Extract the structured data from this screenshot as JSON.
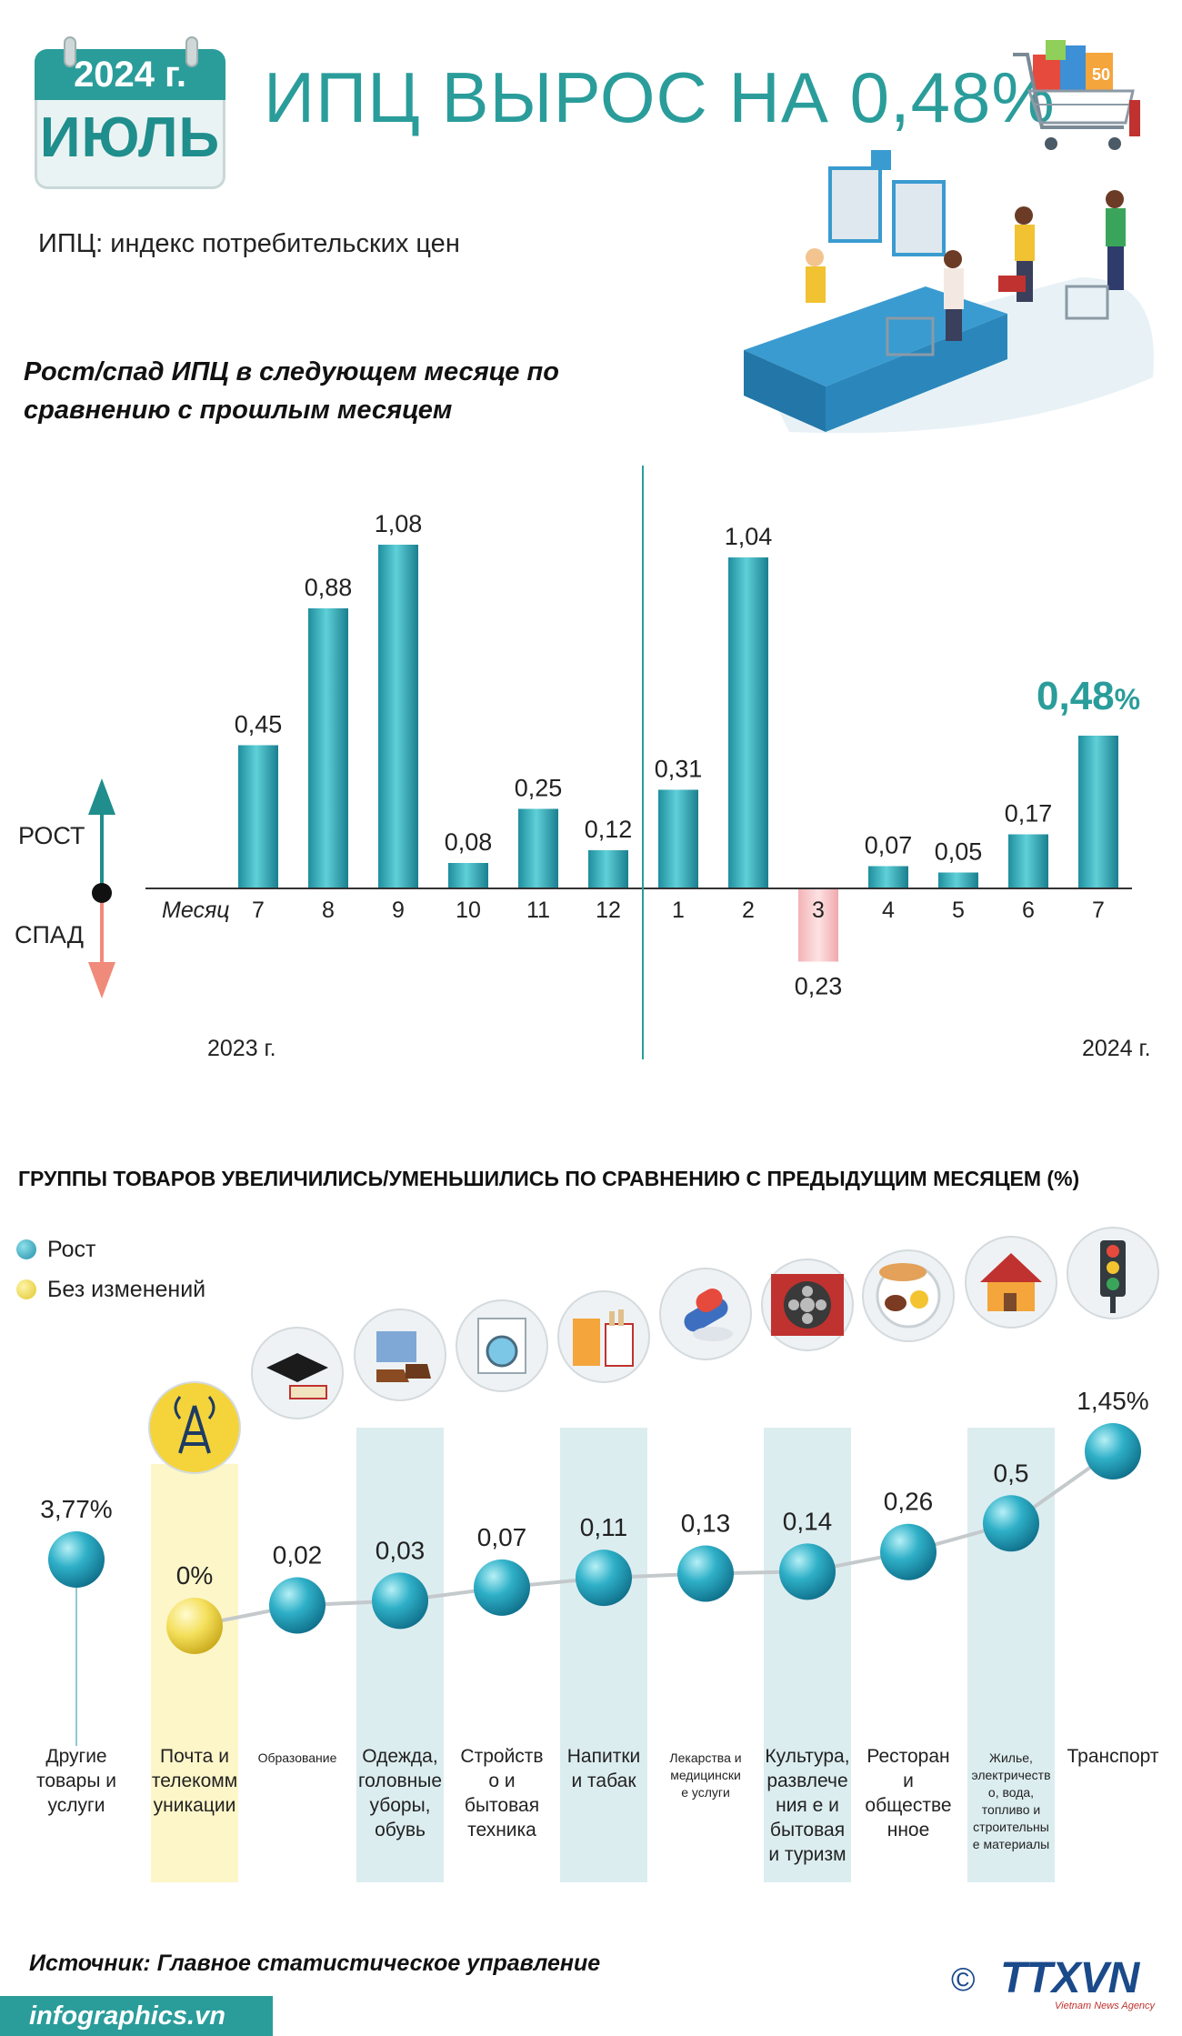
{
  "header": {
    "year_badge": "2024 г.",
    "month_badge": "ИЮЛЬ",
    "title": "ИПЦ ВЫРОС НА 0,48%",
    "subtitle": "ИПЦ: индекс потребительских цен"
  },
  "colors": {
    "accent": "#2a9d9b",
    "bar_teal": "#2aa7b5",
    "bar_negative": "#f6c6c8",
    "arrow_up": "#1f8e8c",
    "arrow_down": "#f08a7a",
    "highlight_yellow": "#fdf6c8",
    "highlight_blue": "#dcedf0"
  },
  "chart1": {
    "title_line1": "Рост/спад ИПЦ в следующем месяце по",
    "title_line2": "сравнению с прошлым месяцем",
    "rise_label": "РОСТ",
    "fall_label": "СПАД",
    "month_axis_label": "Месяц",
    "year_left": "2023 г.",
    "year_right": "2024 г.",
    "highlight_value": "0,48",
    "highlight_unit": "%"
  },
  "chart_data": [
    {
      "type": "bar",
      "title": "Рост/спад ИПЦ в следующем месяце по сравнению с прошлым месяцем",
      "xlabel": "Месяц",
      "categories": [
        "7",
        "8",
        "9",
        "10",
        "11",
        "12",
        "1",
        "2",
        "3",
        "4",
        "5",
        "6",
        "7"
      ],
      "values": [
        0.45,
        0.88,
        1.08,
        0.08,
        0.25,
        0.12,
        0.31,
        1.04,
        -0.23,
        0.07,
        0.05,
        0.17,
        0.48
      ],
      "labels": [
        "0,45",
        "0,88",
        "1,08",
        "0,08",
        "0,25",
        "0,12",
        "0,31",
        "1,04",
        "0,23",
        "0,07",
        "0,05",
        "0,17",
        "0,48"
      ],
      "groups": [
        {
          "name": "2023 г.",
          "count": 6
        },
        {
          "name": "2024 г.",
          "count": 7
        }
      ],
      "ylim": [
        -0.23,
        1.08
      ],
      "grid": false
    },
    {
      "type": "scatter",
      "title": "ГРУППЫ ТОВАРОВ УВЕЛИЧИЛИСЬ/УМЕНЬШИЛИСЬ ПО СРАВНЕНИЮ С ПРЕДЫДУЩИМ МЕСЯЦЕМ (%)",
      "legend": [
        {
          "name": "Рост",
          "color": "#2aa7b5"
        },
        {
          "name": "Без изменений",
          "color": "#f2df5e"
        }
      ],
      "legend_position": "top-left",
      "categories": [
        "Другие товары и услуги",
        "Почта и телекоммуникации",
        "Образование",
        "Одежда, головные уборы, обувь",
        "Стройство и бытовая техника",
        "Напитки и табак",
        "Лекарства и медицинские услуги",
        "Культура, развлечения и бытовая и туризм",
        "Ресторан и общественное",
        "Жилье, электричество, вода, топливо и строительные материалы",
        "Транспорт"
      ],
      "values": [
        3.77,
        0,
        0.02,
        0.03,
        0.07,
        0.11,
        0.13,
        0.14,
        0.26,
        0.5,
        1.45
      ],
      "labels": [
        "3,77%",
        "0%",
        "0,02",
        "0,03",
        "0,07",
        "0,11",
        "0,13",
        "0,14",
        "0,26",
        "0,5",
        "1,45%"
      ],
      "status": [
        "rise",
        "unchanged",
        "rise",
        "rise",
        "rise",
        "rise",
        "rise",
        "rise",
        "rise",
        "rise",
        "rise"
      ],
      "icons": [
        "none",
        "radio-tower-icon",
        "graduation-cap-icon",
        "clothes-shoes-icon",
        "washing-machine-icon",
        "drinks-tobacco-icon",
        "pills-icon",
        "film-reel-icon",
        "restaurant-plate-icon",
        "house-icon",
        "traffic-light-icon"
      ],
      "highlighted": [
        false,
        true,
        false,
        true,
        false,
        true,
        false,
        true,
        false,
        true,
        false
      ]
    }
  ],
  "chart2": {
    "title": "ГРУППЫ ТОВАРОВ УВЕЛИЧИЛИСЬ/УМЕНЬШИЛИСЬ ПО СРАВНЕНИЮ С ПРЕДЫДУЩИМ МЕСЯЦЕМ (%)",
    "legend_rise": "Рост",
    "legend_none": "Без изменений",
    "category_lines": [
      [
        "Другие",
        "товары и",
        "услуги"
      ],
      [
        "Почта и",
        "телекомм",
        "уникации"
      ],
      [
        "Образование"
      ],
      [
        "Одежда,",
        "головные",
        "уборы,",
        "обувь"
      ],
      [
        "Стройств",
        "о и",
        "бытовая",
        "техника"
      ],
      [
        "Напитки",
        "и табак"
      ],
      [
        "Лекарства и",
        "медицински",
        "е услуги"
      ],
      [
        "Культура,",
        "развлече",
        "ния е и",
        "бытовая",
        "и туризм"
      ],
      [
        "Ресторан",
        "и",
        "обществе",
        "нное"
      ],
      [
        "Жилье,",
        "электричеств",
        "о, вода,",
        "топливо и",
        "строительны",
        "е материалы"
      ],
      [
        "Транспорт"
      ]
    ],
    "label_small": [
      false,
      false,
      true,
      false,
      false,
      false,
      true,
      false,
      false,
      true,
      false
    ]
  },
  "footer": {
    "source": "Источник: Главное статистическое управление",
    "site": "infographics.vn",
    "copyright": "©",
    "logo": "TTXVN",
    "logo_sub": "Vietnam News Agency"
  }
}
